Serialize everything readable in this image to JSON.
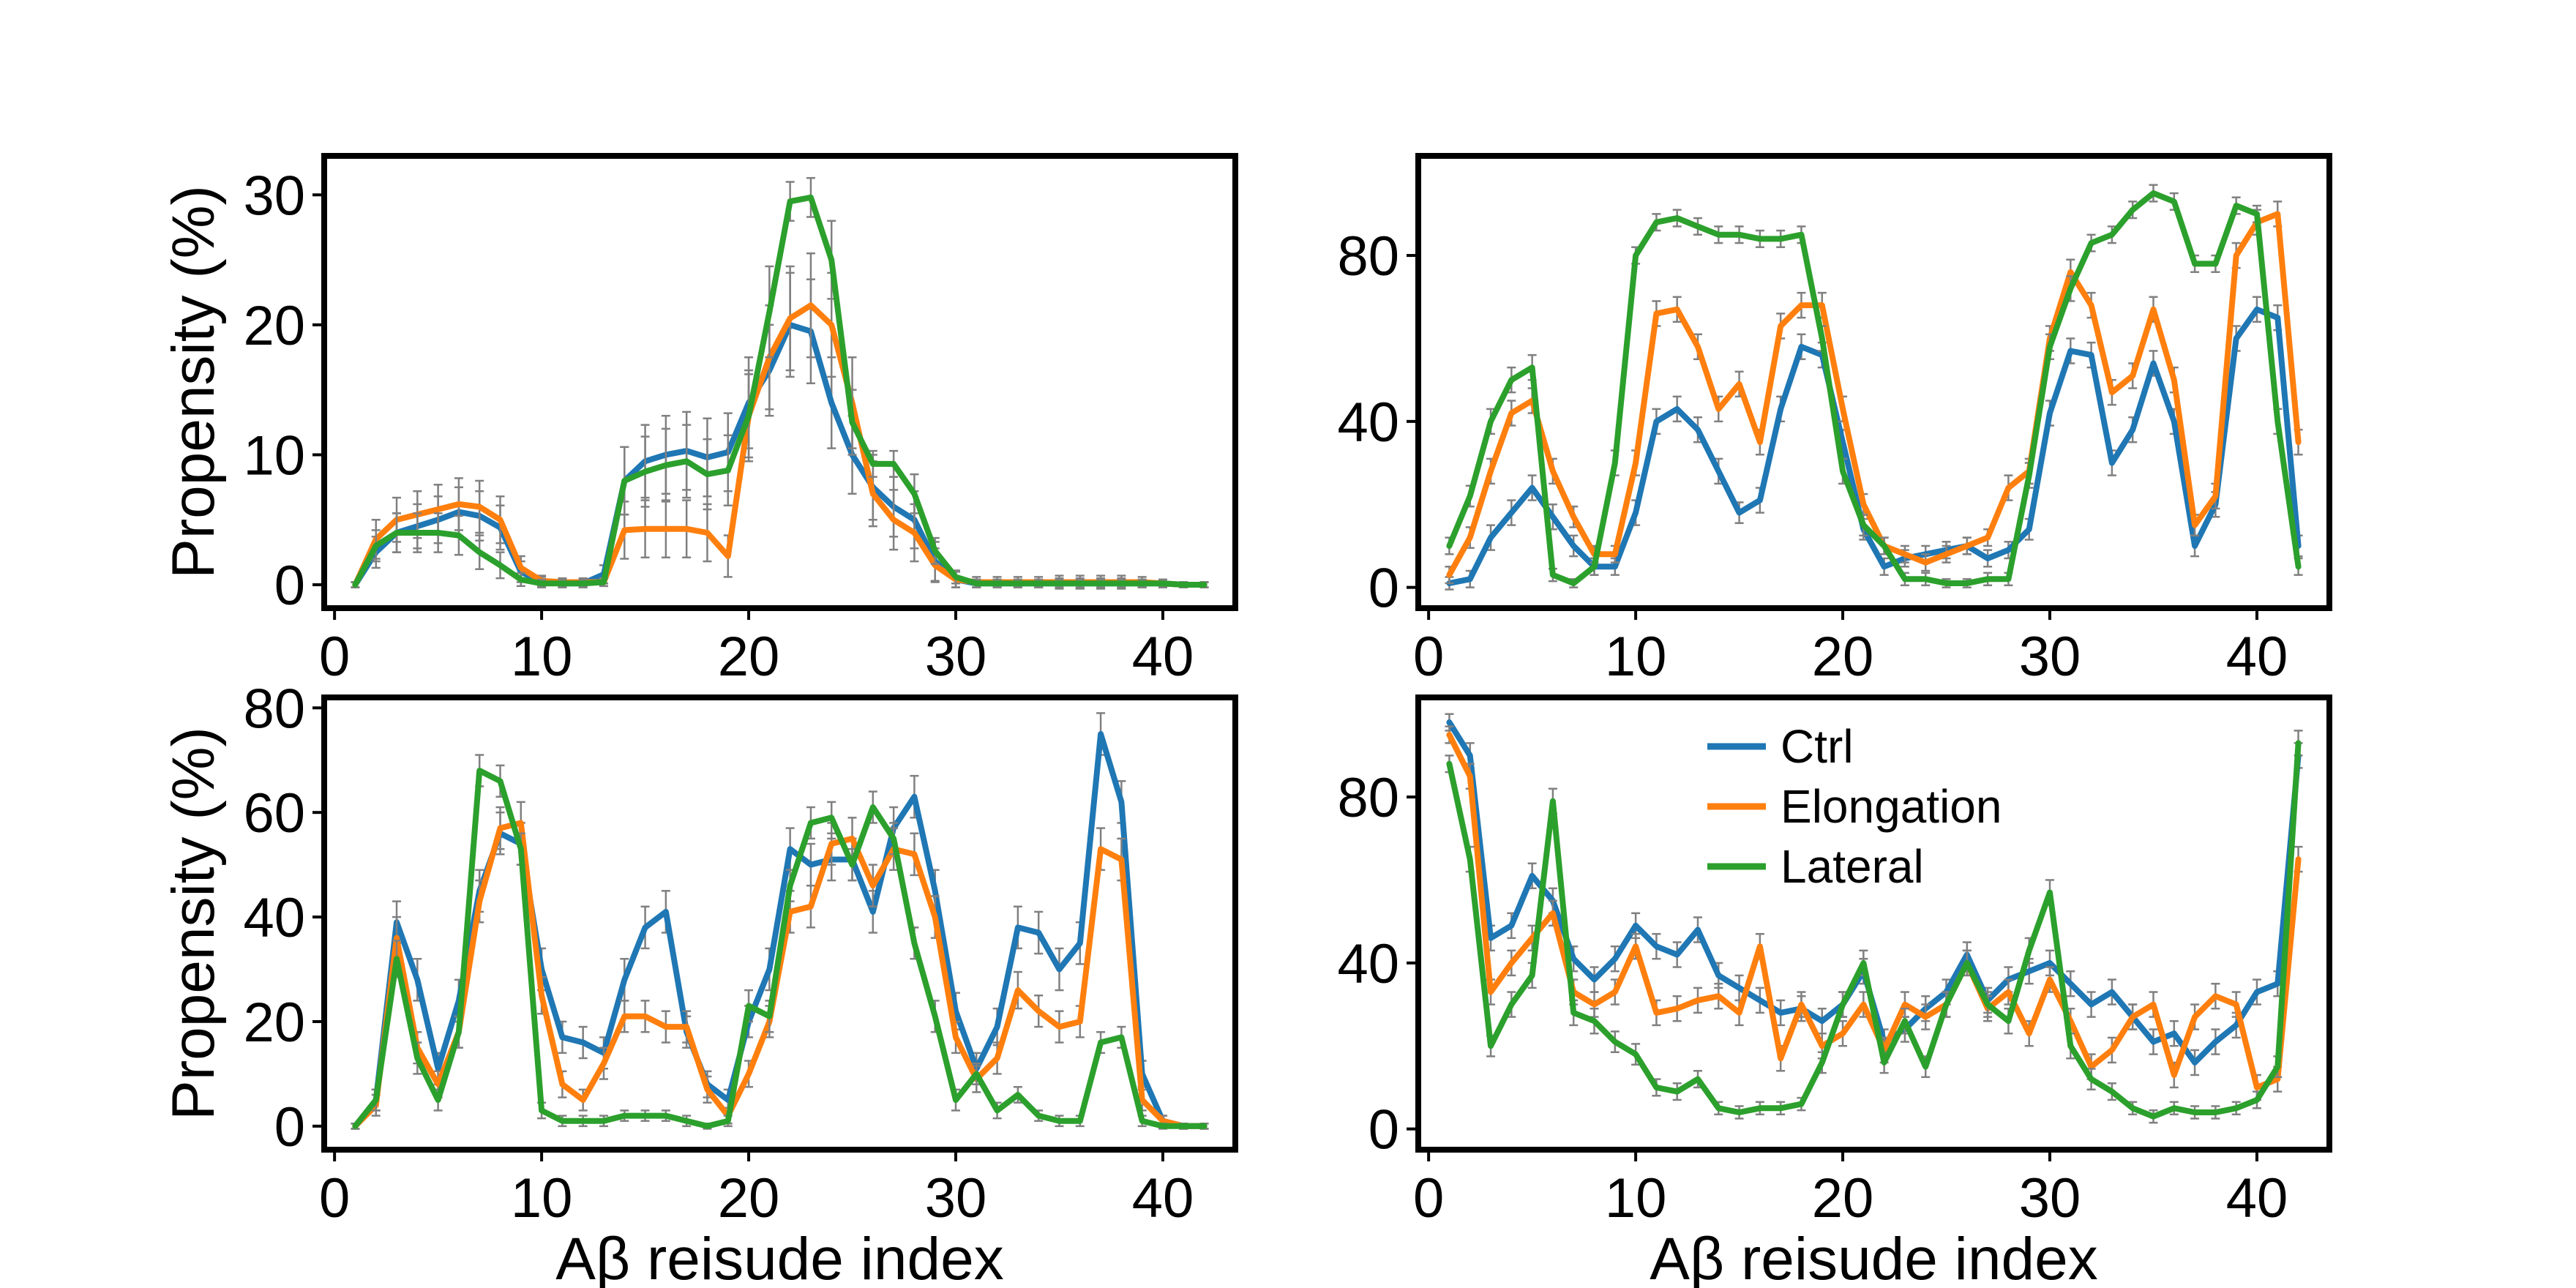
{
  "chart_data": [
    {
      "type": "line",
      "position": "top-left",
      "ylabel": "Propensity (%)",
      "xlabel": "",
      "xlim": [
        -0.5,
        43.5
      ],
      "ylim": [
        -1.8,
        33
      ],
      "xticks": [
        "0",
        "10",
        "20",
        "30",
        "40"
      ],
      "yticks": [
        "0",
        "10",
        "20",
        "30"
      ],
      "error_bars": true,
      "series": [
        {
          "name": "Ctrl",
          "color": "#1f77b4",
          "y": [
            0,
            2.5,
            4,
            4.5,
            5,
            5.6,
            5.3,
            4.4,
            1,
            0.2,
            0.1,
            0.1,
            0.8,
            8,
            9.5,
            10,
            10.3,
            9.8,
            10.2,
            14,
            16.5,
            20,
            19.5,
            14,
            10,
            7.5,
            6,
            5,
            1.8,
            0.4,
            0.1,
            0.1,
            0.1,
            0.1,
            0.1,
            0.1,
            0.1,
            0.1,
            0.1,
            0.1,
            0,
            0
          ],
          "err": [
            0.2,
            1.2,
            1.5,
            1.7,
            1.8,
            1.9,
            1.9,
            1.7,
            0.8,
            0.4,
            0.3,
            0.3,
            0.7,
            2.6,
            2.8,
            3,
            3,
            3,
            3,
            3.5,
            3.5,
            4,
            4,
            3.5,
            3,
            2.5,
            2.3,
            2.2,
            1.5,
            0.6,
            0.3,
            0.3,
            0.3,
            0.3,
            0.4,
            0.4,
            0.4,
            0.4,
            0.3,
            0.3,
            0.2,
            0.2
          ]
        },
        {
          "name": "Elongation",
          "color": "#ff7f0e",
          "y": [
            0,
            3.5,
            5,
            5.4,
            5.8,
            6.2,
            6,
            5,
            1.3,
            0.3,
            0.2,
            0.2,
            0.2,
            4.2,
            4.3,
            4.3,
            4.3,
            4,
            2.2,
            13,
            17.5,
            20.5,
            21.5,
            20,
            14,
            7,
            5,
            4,
            1.5,
            0.4,
            0.2,
            0.2,
            0.2,
            0.2,
            0.2,
            0.2,
            0.2,
            0.2,
            0.2,
            0.1,
            0,
            0
          ],
          "err": [
            0.2,
            1.5,
            1.7,
            1.8,
            1.9,
            2,
            2,
            1.8,
            0.9,
            0.4,
            0.3,
            0.3,
            0.3,
            2.2,
            2.2,
            2.2,
            2.2,
            2.2,
            1.6,
            3.5,
            4,
            4,
            4,
            4,
            3.5,
            2.5,
            2.3,
            2.2,
            1.3,
            0.6,
            0.4,
            0.4,
            0.4,
            0.4,
            0.5,
            0.5,
            0.5,
            0.5,
            0.4,
            0.3,
            0.2,
            0.2
          ]
        },
        {
          "name": "Lateral",
          "color": "#2ca02c",
          "y": [
            0,
            3,
            4,
            4,
            4,
            3.8,
            2.5,
            1.5,
            0.4,
            0.1,
            0.1,
            0.1,
            0.2,
            8,
            8.7,
            9.2,
            9.5,
            8.5,
            8.8,
            13,
            21,
            29.5,
            29.8,
            25,
            12.5,
            9.3,
            9.3,
            7,
            2.6,
            0.6,
            0.1,
            0.1,
            0.1,
            0.1,
            0.1,
            0.1,
            0.1,
            0.1,
            0.1,
            0.1,
            0,
            0
          ],
          "err": [
            0.2,
            1.2,
            1.5,
            1.5,
            1.5,
            1.5,
            1.3,
            1,
            0.5,
            0.3,
            0.3,
            0.3,
            0.3,
            2.6,
            2.7,
            2.8,
            2.8,
            2.7,
            2.7,
            3.2,
            3.5,
            1.5,
            1.5,
            3,
            2.5,
            1,
            1,
            1.5,
            1,
            0.5,
            0.3,
            0.3,
            0.3,
            0.3,
            0.3,
            0.3,
            0.3,
            0.3,
            0.3,
            0.3,
            0.2,
            0.2
          ]
        }
      ]
    },
    {
      "type": "line",
      "position": "top-right",
      "ylabel": "",
      "xlabel": "",
      "xlim": [
        -0.5,
        43.5
      ],
      "ylim": [
        -5,
        104
      ],
      "xticks": [
        "0",
        "10",
        "20",
        "30",
        "40"
      ],
      "yticks": [
        "0",
        "40",
        "80"
      ],
      "error_bars": true,
      "series": [
        {
          "name": "Ctrl",
          "color": "#1f77b4",
          "y": [
            1,
            2,
            12,
            18,
            24,
            17,
            10,
            5,
            5,
            18,
            40,
            43,
            38,
            28,
            18,
            21,
            43,
            58,
            56,
            35,
            14,
            5,
            7,
            8,
            9,
            10,
            7,
            9,
            14,
            42,
            57,
            56,
            30,
            38,
            54,
            40,
            10,
            20,
            60,
            67,
            65,
            10
          ],
          "err": [
            1.5,
            2,
            3,
            3,
            3,
            3,
            2.5,
            2,
            2,
            3,
            3,
            3,
            3,
            3,
            2.5,
            3,
            3,
            3,
            3,
            3,
            2.5,
            2,
            2,
            2,
            2,
            2,
            2,
            2,
            2.5,
            3,
            3,
            3,
            3,
            3,
            3,
            3,
            2.5,
            3,
            3,
            3,
            3,
            2.5
          ]
        },
        {
          "name": "Elongation",
          "color": "#ff7f0e",
          "y": [
            3,
            12,
            28,
            42,
            45,
            28,
            17,
            8,
            8,
            30,
            66,
            67,
            58,
            43,
            49,
            35,
            63,
            68,
            68,
            43,
            20,
            10,
            8,
            6,
            8,
            10,
            12,
            24,
            28,
            60,
            76,
            68,
            47,
            51,
            67,
            50,
            15,
            22,
            80,
            88,
            90,
            35
          ],
          "err": [
            2,
            2.5,
            3,
            3,
            3,
            3,
            2.5,
            2,
            2,
            3,
            3,
            3,
            3,
            3,
            3,
            3,
            3,
            3,
            3,
            3,
            2.5,
            2,
            2,
            2,
            2,
            2,
            2,
            3,
            3,
            3,
            3,
            3,
            3,
            3,
            3,
            3,
            2.5,
            3,
            3,
            3,
            3,
            3
          ]
        },
        {
          "name": "Lateral",
          "color": "#2ca02c",
          "y": [
            10,
            22,
            40,
            50,
            53,
            3,
            1,
            5,
            30,
            80,
            88,
            89,
            87,
            85,
            85,
            84,
            84,
            85,
            60,
            28,
            15,
            10,
            2,
            2,
            1,
            1,
            2,
            2,
            27,
            58,
            72,
            83,
            85,
            91,
            95,
            93,
            78,
            78,
            92,
            90,
            40,
            5
          ],
          "err": [
            2,
            2.5,
            3,
            3,
            3,
            1.5,
            1,
            2,
            3,
            2,
            2,
            2,
            2,
            2,
            2,
            2,
            2,
            2,
            3,
            3,
            2.5,
            2,
            1.5,
            1.5,
            1,
            1,
            1.5,
            1.5,
            3,
            3,
            3,
            2,
            2,
            2,
            2,
            2,
            2,
            2,
            2,
            2,
            3,
            2
          ]
        }
      ]
    },
    {
      "type": "line",
      "position": "bottom-left",
      "ylabel": "Propensity (%)",
      "xlabel": "Aβ reisude index",
      "xlim": [
        -0.5,
        43.5
      ],
      "ylim": [
        -4.5,
        82
      ],
      "xticks": [
        "0",
        "10",
        "20",
        "30",
        "40"
      ],
      "yticks": [
        "0",
        "20",
        "40",
        "60",
        "80"
      ],
      "error_bars": true,
      "series": [
        {
          "name": "Ctrl",
          "color": "#1f77b4",
          "y": [
            0,
            5,
            39,
            28,
            11,
            24,
            45,
            56,
            54,
            30,
            17,
            16,
            14,
            28,
            38,
            41,
            18,
            8,
            5,
            20,
            30,
            53,
            50,
            51,
            51,
            41,
            57,
            63,
            45,
            22,
            11,
            19,
            38,
            37,
            30,
            35,
            75,
            62,
            10,
            1,
            0,
            0
          ],
          "err": [
            0.5,
            2,
            4,
            4,
            3,
            4,
            4,
            4,
            4,
            4,
            3,
            3,
            3,
            4,
            4,
            4,
            3,
            2.5,
            2,
            3,
            4,
            4,
            4,
            4,
            4,
            4,
            4,
            4,
            4,
            3.5,
            3,
            3.5,
            4,
            4,
            4,
            4,
            4,
            4,
            2.5,
            1,
            0.5,
            0.5
          ]
        },
        {
          "name": "Elongation",
          "color": "#ff7f0e",
          "y": [
            0,
            4,
            36,
            15,
            8,
            18,
            43,
            57,
            58,
            25,
            8,
            5,
            12,
            21,
            21,
            19,
            19,
            7,
            2,
            10,
            20,
            41,
            42,
            54,
            55,
            46,
            53,
            52,
            40,
            17,
            9,
            13,
            26,
            22,
            19,
            20,
            53,
            51,
            5,
            1,
            0,
            0
          ],
          "err": [
            0.5,
            2,
            4,
            3,
            2.5,
            3,
            4,
            4,
            4,
            3.5,
            2.5,
            2,
            3,
            3,
            3,
            3,
            3,
            2.5,
            1.5,
            2.5,
            3,
            4,
            4,
            4,
            4,
            4,
            4,
            4,
            4,
            3,
            2.5,
            3,
            3.5,
            3,
            3,
            3,
            4,
            4,
            2,
            1,
            0.5,
            0.5
          ]
        },
        {
          "name": "Lateral",
          "color": "#2ca02c",
          "y": [
            0,
            5,
            32,
            13,
            5,
            18,
            68,
            66,
            53,
            3,
            1,
            1,
            1,
            2,
            2,
            2,
            1,
            0,
            1,
            23,
            21,
            46,
            58,
            59,
            50,
            61,
            55,
            35,
            21,
            5,
            10,
            3,
            6,
            2,
            1,
            1,
            16,
            17,
            1,
            0,
            0,
            0
          ],
          "err": [
            0.5,
            2,
            3.5,
            3,
            2,
            3,
            3,
            3,
            3,
            1.5,
            1,
            1,
            1,
            1,
            1,
            1,
            1,
            0.5,
            1,
            3,
            3,
            3,
            3,
            3,
            3,
            3,
            3,
            3,
            3,
            2,
            2,
            1.5,
            1.5,
            1,
            1,
            1,
            2,
            2,
            1,
            0.5,
            0.5,
            0.5
          ]
        }
      ]
    },
    {
      "type": "line",
      "position": "bottom-right",
      "ylabel": "",
      "xlabel": "Aβ reisude index",
      "xlim": [
        -0.5,
        43.5
      ],
      "ylim": [
        -5,
        104
      ],
      "xticks": [
        "0",
        "10",
        "20",
        "30",
        "40"
      ],
      "yticks": [
        "0",
        "40",
        "80"
      ],
      "error_bars": true,
      "legend": {
        "placement": "upper-center",
        "entries": [
          "Ctrl",
          "Elongation",
          "Lateral"
        ]
      },
      "series": [
        {
          "name": "Ctrl",
          "color": "#1f77b4",
          "y": [
            98,
            90,
            46,
            49,
            61,
            55,
            41,
            36,
            41,
            49,
            44,
            42,
            48,
            37,
            34,
            31,
            28,
            29,
            26,
            30,
            38,
            21,
            24,
            29,
            33,
            42,
            31,
            36,
            38,
            40,
            35,
            30,
            33,
            27,
            21,
            23,
            16,
            21,
            25,
            33,
            35,
            90
          ],
          "err": [
            2,
            3,
            3,
            3,
            3,
            3,
            3,
            3,
            3,
            3,
            3,
            3,
            3,
            3,
            3,
            3,
            3,
            3,
            3,
            3,
            3,
            3,
            3,
            3,
            3,
            3,
            3,
            3,
            3,
            3,
            3,
            3,
            3,
            3,
            3,
            3,
            3,
            3,
            3,
            3,
            3,
            3
          ]
        },
        {
          "name": "Elongation",
          "color": "#ff7f0e",
          "y": [
            95,
            85,
            33,
            40,
            46,
            52,
            33,
            30,
            33,
            44,
            28,
            29,
            31,
            32,
            28,
            44,
            17,
            30,
            20,
            23,
            30,
            19,
            30,
            27,
            30,
            40,
            29,
            33,
            23,
            36,
            26,
            15,
            19,
            27,
            30,
            13,
            27,
            32,
            30,
            10,
            12,
            65
          ],
          "err": [
            2,
            3,
            3,
            3,
            3,
            3,
            3,
            3,
            3,
            3,
            3,
            3,
            3,
            3,
            3,
            3,
            3,
            3,
            3,
            3,
            3,
            3,
            3,
            3,
            3,
            3,
            3,
            3,
            3,
            3,
            3,
            3,
            3,
            3,
            3,
            3,
            3,
            3,
            3,
            3,
            3,
            3
          ]
        },
        {
          "name": "Lateral",
          "color": "#2ca02c",
          "y": [
            88,
            65,
            20,
            30,
            37,
            79,
            28,
            26,
            21,
            18,
            10,
            9,
            12,
            5,
            4,
            5,
            5,
            6,
            16,
            30,
            40,
            16,
            26,
            15,
            30,
            40,
            30,
            26,
            43,
            57,
            20,
            12,
            9,
            5,
            3,
            5,
            4,
            4,
            5,
            7,
            15,
            93
          ],
          "err": [
            2,
            3,
            2.5,
            3,
            3,
            3,
            3,
            3,
            2.5,
            2.5,
            2,
            2,
            2,
            1.5,
            1.5,
            1.5,
            1.5,
            1.5,
            2.5,
            3,
            3,
            2.5,
            3,
            2.5,
            3,
            3,
            3,
            3,
            3,
            3,
            3,
            2.5,
            2,
            1.5,
            1.5,
            1.5,
            1.5,
            1.5,
            1.5,
            2,
            2.5,
            3
          ]
        }
      ]
    }
  ]
}
